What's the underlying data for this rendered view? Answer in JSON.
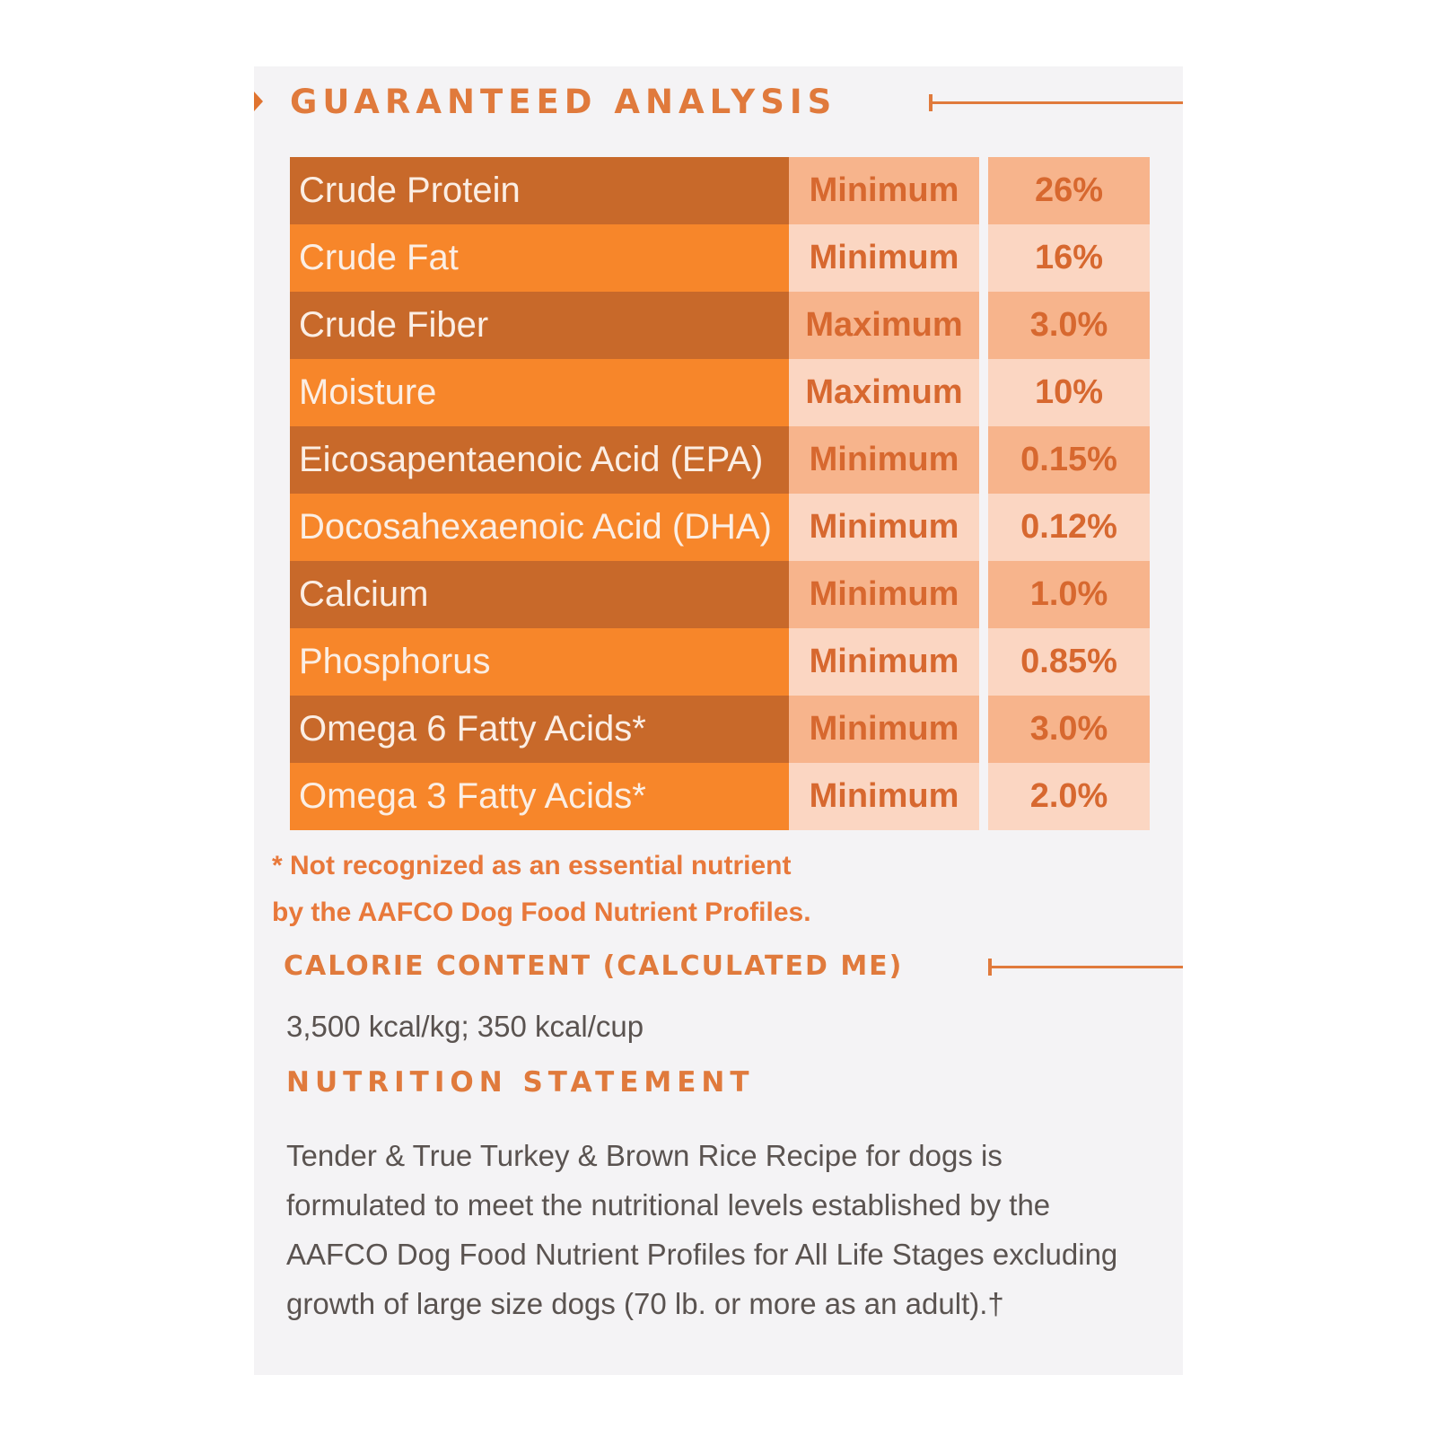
{
  "guaranteed_analysis": {
    "title": "GUARANTEED ANALYSIS",
    "rows": [
      {
        "nutrient": "Crude Protein",
        "basis": "Minimum",
        "value": "26%"
      },
      {
        "nutrient": "Crude Fat",
        "basis": "Minimum",
        "value": "16%"
      },
      {
        "nutrient": "Crude Fiber",
        "basis": "Maximum",
        "value": "3.0%"
      },
      {
        "nutrient": "Moisture",
        "basis": "Maximum",
        "value": "10%"
      },
      {
        "nutrient": "Eicosapentaenoic Acid  (EPA)",
        "basis": "Minimum",
        "value": "0.15%"
      },
      {
        "nutrient": "Docosahexaenoic Acid  (DHA)",
        "basis": "Minimum",
        "value": "0.12%"
      },
      {
        "nutrient": "Calcium",
        "basis": "Minimum",
        "value": "1.0%"
      },
      {
        "nutrient": "Phosphorus",
        "basis": "Minimum",
        "value": "0.85%"
      },
      {
        "nutrient": "Omega 6 Fatty Acids*",
        "basis": "Minimum",
        "value": "3.0%"
      },
      {
        "nutrient": "Omega 3 Fatty Acids*",
        "basis": "Minimum",
        "value": "2.0%"
      }
    ],
    "footnote": "* Not recognized as an essential nutrient by the AAFCO Dog Food Nutrient Profiles."
  },
  "calorie_content": {
    "title": "CALORIE CONTENT (CALCULATED ME)",
    "value": "3,500 kcal/kg; 350 kcal/cup"
  },
  "nutrition_statement": {
    "title": "NUTRITION STATEMENT",
    "text": "Tender & True Turkey & Brown Rice Recipe for dogs is formulated to meet the nutritional levels established by the AAFCO Dog Food Nutrient Profiles for All Life Stages excluding growth of large size dogs (70 lb. or more as an adult).†"
  },
  "colors": {
    "accent": "#e07a3c",
    "row_dark": "#c8692a",
    "row_light": "#f7862a",
    "value_dark": "#f7b48c",
    "value_light": "#fbd6c2"
  }
}
